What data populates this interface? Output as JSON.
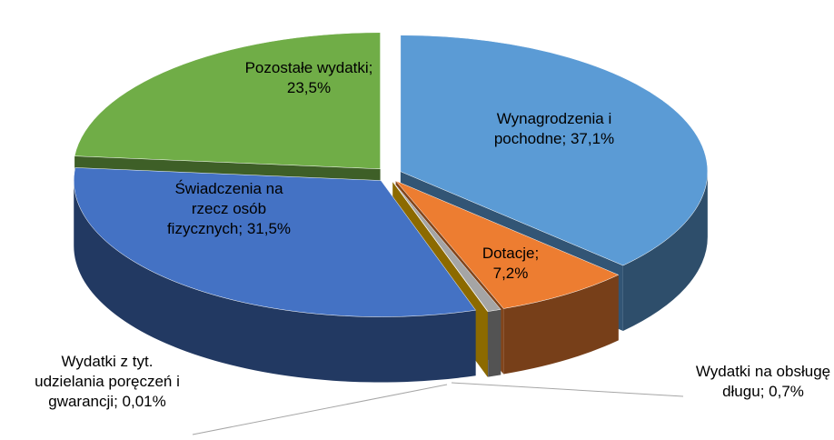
{
  "chart_data": {
    "type": "pie3d",
    "label_separator": ";",
    "categories": [
      "Wynagrodzenia i pochodne",
      "Dotacje",
      "Wydatki na obsługę długu",
      "Wydatki z tyt. udzielania poręczeń i gwarancji",
      "Świadczenia na rzecz osób fizycznych",
      "Pozostałe wydatki"
    ],
    "values": [
      37.1,
      7.2,
      0.7,
      0.01,
      31.5,
      23.5
    ],
    "value_labels": [
      "37,1%",
      "7,2%",
      "0,7%",
      "0,01%",
      "31,5%",
      "23,5%"
    ],
    "colors": [
      "#5b9bd5",
      "#ed7d31",
      "#a5a5a5",
      "#ffc000",
      "#4472c4",
      "#70ad47"
    ]
  }
}
